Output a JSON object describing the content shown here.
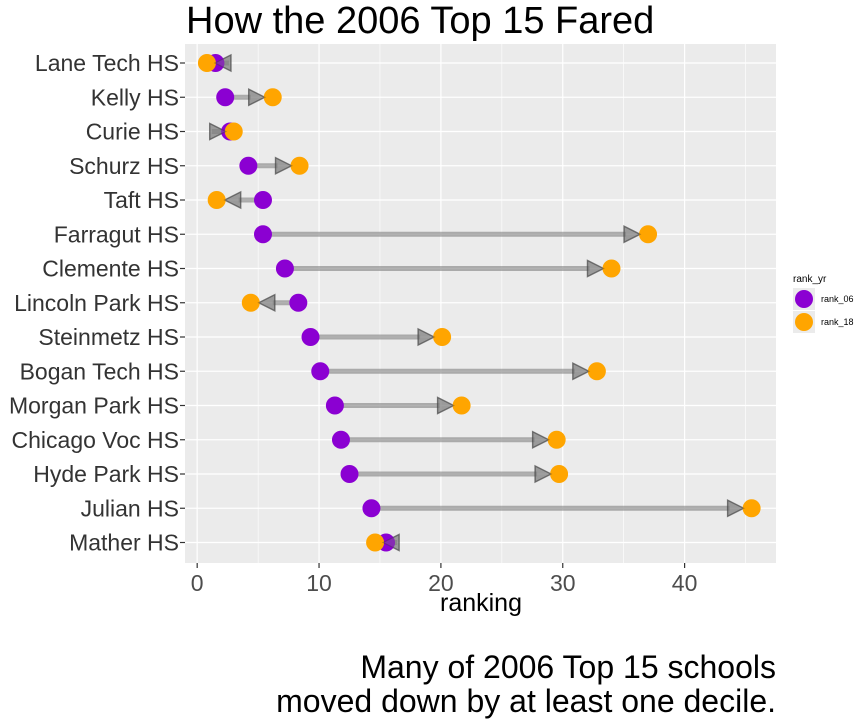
{
  "chart_data": {
    "type": "dumbbell",
    "title": "How the 2006 Top 15 Fared",
    "xlabel": "ranking",
    "ylabel": "",
    "xlim": [
      -1,
      47.5
    ],
    "xticks": [
      0,
      10,
      20,
      30,
      40
    ],
    "grid": true,
    "legend_position": "right",
    "legend": {
      "title": "rank_yr",
      "items": [
        {
          "name": "rank_06",
          "color": "#8B00D2"
        },
        {
          "name": "rank_18",
          "color": "#FFA500"
        }
      ]
    },
    "categories": [
      "Lane Tech HS",
      "Kelly HS",
      "Curie HS",
      "Schurz HS",
      "Taft HS",
      "Farragut HS",
      "Clemente HS",
      "Lincoln Park HS",
      "Steinmetz HS",
      "Bogan Tech HS",
      "Morgan Park HS",
      "Chicago Voc HS",
      "Hyde Park HS",
      "Julian HS",
      "Mather HS"
    ],
    "series": [
      {
        "name": "rank_06",
        "values": [
          1.5,
          2.3,
          2.7,
          4.2,
          5.4,
          5.4,
          7.2,
          8.3,
          9.3,
          10.1,
          11.3,
          11.8,
          12.5,
          14.3,
          15.5
        ]
      },
      {
        "name": "rank_18",
        "values": [
          0.8,
          6.2,
          3.0,
          8.4,
          1.6,
          37.0,
          34.0,
          4.4,
          20.1,
          32.8,
          21.7,
          29.5,
          29.7,
          45.5,
          14.6
        ]
      }
    ],
    "caption": [
      "Many of 2006 Top 15 schools",
      "moved down by at least one decile."
    ]
  },
  "colors": {
    "panel_bg": "#EBEBEB",
    "grid": "#FFFFFF",
    "arrow": "#7F7F7F",
    "rank_06": "#8B00D2",
    "rank_18": "#FFA500"
  }
}
